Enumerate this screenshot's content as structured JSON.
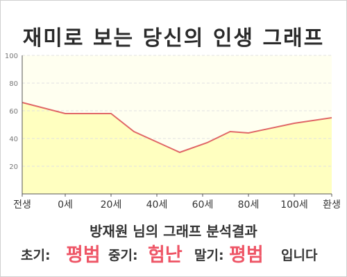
{
  "title": "재미로 보는 당신의 인생 그래프",
  "subtitle": "방재원 님의 그래프 분석결과",
  "result": {
    "early_label": "초기:",
    "early_value": "평범",
    "mid_label": "중기:",
    "mid_value": "험난",
    "late_label": "말기:",
    "late_value": "평범",
    "ending": "입니다"
  },
  "colors": {
    "line": "#e06666",
    "fill": "#ffffc0",
    "plot_bg": "#fffff0",
    "highlight": "#ee5566"
  },
  "chart_data": {
    "type": "area",
    "title": "",
    "xlabel": "",
    "ylabel": "",
    "x_ticks": [
      "전생",
      "0세",
      "20세",
      "40세",
      "60세",
      "80세",
      "100세",
      "환생"
    ],
    "y_ticks": [
      20,
      40,
      60,
      80,
      100
    ],
    "ylim": [
      0,
      100
    ],
    "grid": true,
    "series": [
      {
        "points": [
          {
            "x": "전생",
            "y": 66
          },
          {
            "x": "0세",
            "y": 58
          },
          {
            "x": "20세",
            "y": 58
          },
          {
            "x": "30세",
            "y": 45
          },
          {
            "x": "50세",
            "y": 30
          },
          {
            "x": "62세",
            "y": 37
          },
          {
            "x": "72세",
            "y": 45
          },
          {
            "x": "80세",
            "y": 44
          },
          {
            "x": "100세",
            "y": 51
          },
          {
            "x": "환생",
            "y": 55
          }
        ]
      }
    ]
  }
}
